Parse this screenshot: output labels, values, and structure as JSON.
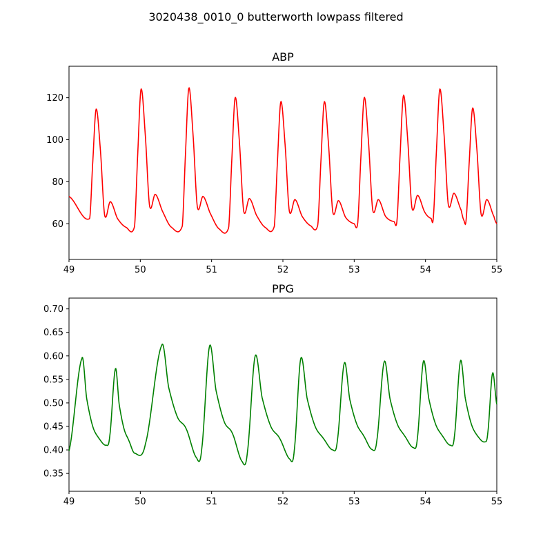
{
  "figure": {
    "suptitle": "3020438_0010_0 butterworth lowpass filtered"
  },
  "chart_data": [
    {
      "type": "line",
      "title": "ABP",
      "xlabel": "",
      "ylabel": "",
      "xlim": [
        49,
        55
      ],
      "ylim": [
        43,
        135
      ],
      "xticks": [
        49,
        50,
        51,
        52,
        53,
        54,
        55
      ],
      "yticks": [
        60,
        80,
        100,
        120
      ],
      "color": "#ff0000",
      "beats": {
        "peak_times": [
          49.38,
          50.01,
          50.68,
          51.33,
          51.97,
          52.58,
          53.14,
          53.69,
          54.2,
          54.66
        ],
        "peak_values": [
          114.5,
          124,
          124.5,
          120,
          118,
          118,
          120,
          121,
          124,
          115
        ],
        "notch_values": [
          64,
          68.5,
          68,
          66,
          66,
          65.5,
          66.5,
          67.5,
          69,
          64.5
        ],
        "dicrotic_values": [
          70.5,
          74,
          73,
          72,
          71.5,
          71,
          71.5,
          73.5,
          74.5,
          71.5
        ],
        "trough_values": [
          60.5,
          56.8,
          57,
          56.2,
          56.8,
          57.5,
          58.5,
          59.5,
          61,
          60
        ]
      },
      "start_value": 73
    },
    {
      "type": "line",
      "title": "PPG",
      "xlabel": "",
      "ylabel": "",
      "xlim": [
        49,
        55
      ],
      "ylim": [
        0.312,
        0.723
      ],
      "xticks": [
        49,
        50,
        51,
        52,
        53,
        54,
        55
      ],
      "yticks": [
        0.35,
        0.4,
        0.45,
        0.5,
        0.55,
        0.6,
        0.65,
        0.7
      ],
      "color": "#008000",
      "beats": {
        "peak_times": [
          49.18,
          49.65,
          50.3,
          50.97,
          51.61,
          52.25,
          52.86,
          53.42,
          53.97,
          54.49,
          54.94
        ],
        "peak_values": [
          0.594,
          0.572,
          0.622,
          0.62,
          0.599,
          0.594,
          0.584,
          0.587,
          0.588,
          0.589,
          0.563
        ],
        "shoulder_values": [
          0.44,
          0.435,
          0.46,
          0.45,
          0.44,
          0.44,
          0.445,
          0.445,
          0.445,
          0.445,
          0.5
        ],
        "trough_values": [
          0.41,
          0.393,
          0.383,
          0.375,
          0.38,
          0.4,
          0.401,
          0.405,
          0.41,
          0.417
        ],
        "trough_times": [
          49.52,
          49.92,
          50.79,
          51.43,
          52.1,
          52.7,
          53.25,
          53.83,
          54.35,
          54.83
        ]
      },
      "start_value": 0.398,
      "start_time": 49.02
    }
  ],
  "ticks": {
    "abp_x": [
      "49",
      "50",
      "51",
      "52",
      "53",
      "54",
      "55"
    ],
    "abp_y": [
      "60",
      "80",
      "100",
      "120"
    ],
    "ppg_x": [
      "49",
      "50",
      "51",
      "52",
      "53",
      "54",
      "55"
    ],
    "ppg_y": [
      "0.35",
      "0.40",
      "0.45",
      "0.50",
      "0.55",
      "0.60",
      "0.65",
      "0.70"
    ]
  }
}
